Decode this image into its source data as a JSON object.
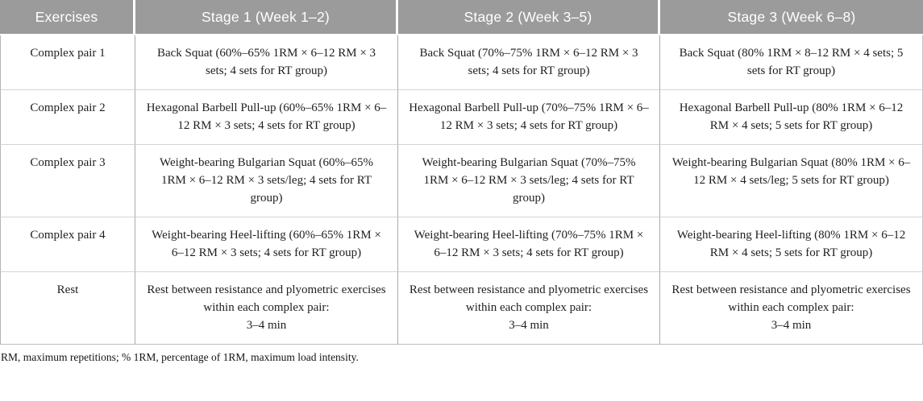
{
  "colors": {
    "header_bg": "#9b9b9b",
    "header_text": "#ffffff",
    "row_border": "#d4d4d4",
    "col_border": "#ababab",
    "body_text": "#1f1f1f"
  },
  "table": {
    "columns": {
      "exercises": "Exercises",
      "stage1": "Stage 1 (Week 1–2)",
      "stage2": "Stage 2 (Week 3–5)",
      "stage3": "Stage 3 (Week 6–8)"
    },
    "rows": [
      {
        "exercise": "Complex pair 1",
        "stage1": "Back Squat (60%–65% 1RM × 6–12 RM × 3 sets; 4 sets for RT group)",
        "stage2": "Back Squat (70%–75% 1RM × 6–12 RM × 3 sets; 4 sets for RT group)",
        "stage3": "Back Squat (80% 1RM × 8–12 RM × 4 sets; 5 sets for RT group)"
      },
      {
        "exercise": "Complex pair 2",
        "stage1": "Hexagonal Barbell Pull-up (60%–65% 1RM × 6–12 RM × 3 sets; 4 sets for RT group)",
        "stage2": "Hexagonal Barbell Pull-up (70%–75% 1RM × 6–12 RM × 3 sets; 4 sets for RT group)",
        "stage3": "Hexagonal Barbell Pull-up (80% 1RM × 6–12 RM × 4 sets; 5 sets for RT group)"
      },
      {
        "exercise": "Complex pair 3",
        "stage1": "Weight-bearing Bulgarian Squat (60%–65% 1RM × 6–12 RM × 3 sets/leg; 4 sets for RT group)",
        "stage2": "Weight-bearing Bulgarian Squat (70%–75% 1RM × 6–12 RM × 3 sets/leg; 4 sets for RT group)",
        "stage3": "Weight-bearing Bulgarian Squat (80% 1RM × 6–12 RM × 4 sets/leg; 5 sets for RT group)"
      },
      {
        "exercise": "Complex pair 4",
        "stage1": "Weight-bearing Heel-lifting (60%–65% 1RM × 6–12 RM × 3 sets; 4 sets for RT group)",
        "stage2": "Weight-bearing Heel-lifting (70%–75% 1RM × 6–12 RM × 3 sets; 4 sets for RT group)",
        "stage3": "Weight-bearing Heel-lifting (80% 1RM × 6–12 RM × 4 sets; 5 sets for RT group)"
      },
      {
        "exercise": "Rest",
        "stage1": "Rest between resistance and plyometric exercises within each complex pair:\n3–4 min",
        "stage2": "Rest between resistance and plyometric exercises within each complex pair:\n3–4 min",
        "stage3": "Rest between resistance and plyometric exercises within each complex pair:\n3–4 min"
      }
    ],
    "footnote": "RM, maximum repetitions; % 1RM, percentage of 1RM, maximum load intensity."
  }
}
